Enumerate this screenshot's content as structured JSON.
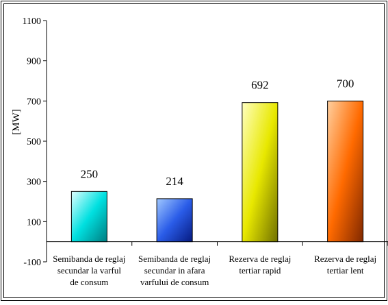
{
  "chart_data": {
    "type": "bar",
    "title": "",
    "xlabel": "",
    "ylabel": "[MW]",
    "ylim": [
      -100,
      1100
    ],
    "yticks": [
      -100,
      100,
      300,
      500,
      700,
      900,
      1100
    ],
    "grid": false,
    "legend": "none",
    "categories": [
      [
        "Semibanda de reglaj",
        "secundar la varful",
        "de consum"
      ],
      [
        "Semibanda de reglaj",
        "secundar in afara",
        "varfului de consum"
      ],
      [
        "Rezerva de reglaj",
        "tertiar rapid"
      ],
      [
        "Rezerva de reglaj",
        "tertiar lent"
      ]
    ],
    "values": [
      250,
      214,
      692,
      700
    ],
    "data_labels": [
      "250",
      "214",
      "692",
      "700"
    ],
    "bar_colors": [
      [
        "#e0ffff",
        "#00e0e0",
        "#007c80"
      ],
      [
        "#a0c8ff",
        "#2a5ce8",
        "#061a80"
      ],
      [
        "#ffffc0",
        "#e8e800",
        "#707000"
      ],
      [
        "#ffd0a0",
        "#ff6a00",
        "#802800"
      ]
    ]
  }
}
